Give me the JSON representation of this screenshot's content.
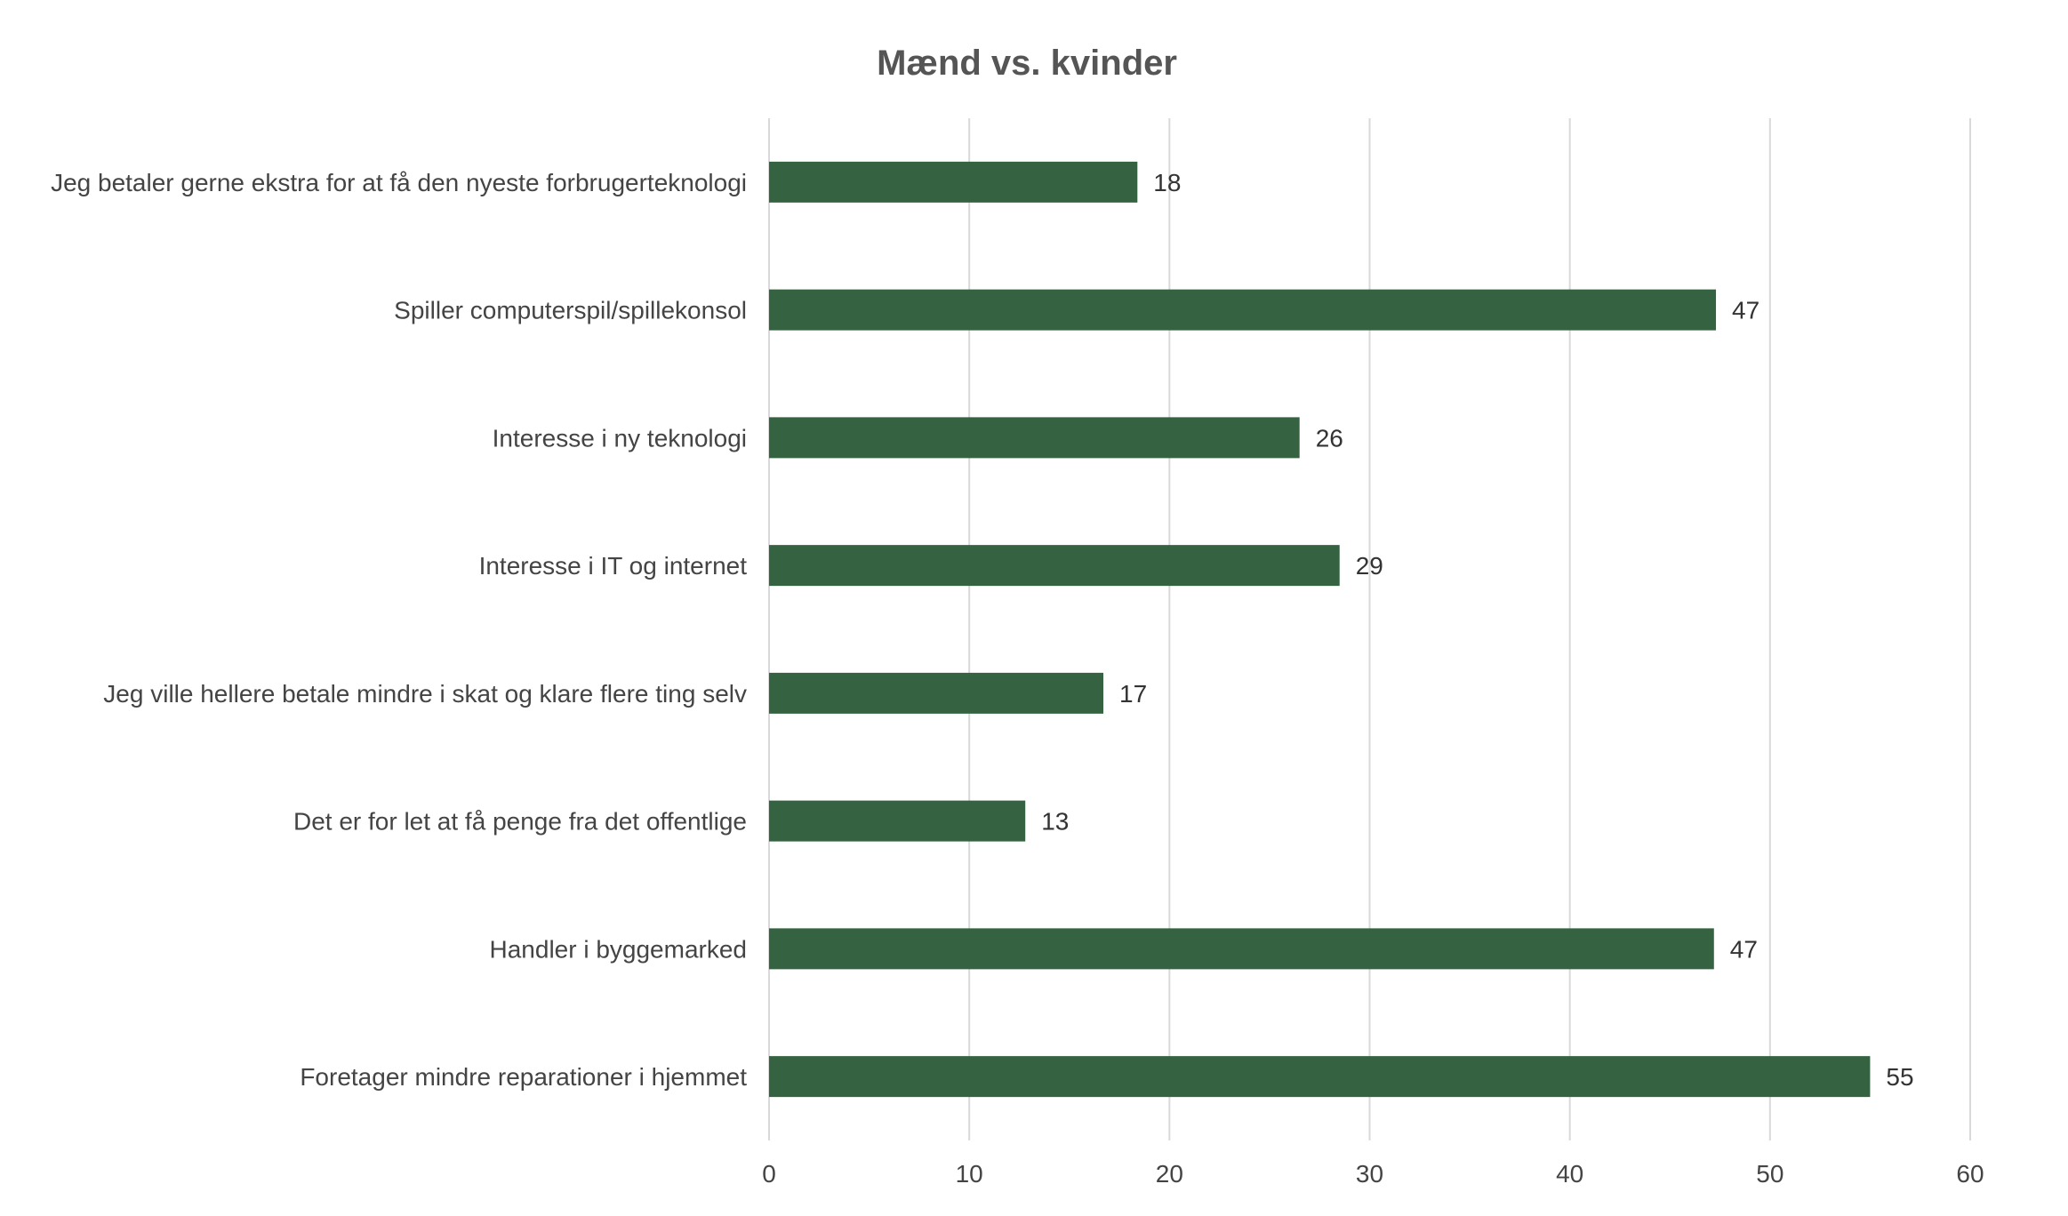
{
  "chart_data": {
    "type": "bar",
    "orientation": "horizontal",
    "title": "Mænd vs. kvinder",
    "categories": [
      "Jeg betaler gerne ekstra for at få den nyeste forbrugerteknologi",
      "Spiller computerspil/spillekonsol",
      "Interesse i ny teknologi",
      "Interesse i IT og internet",
      "Jeg ville hellere betale mindre i skat og klare flere ting selv",
      "Det er for let at få penge fra det offentlige",
      "Handler i byggemarked",
      "Foretager mindre reparationer i hjemmet"
    ],
    "values": [
      18.4,
      47.3,
      26.5,
      28.5,
      16.7,
      12.8,
      47.2,
      55.0
    ],
    "data_labels": [
      "18",
      "47",
      "26",
      "29",
      "17",
      "13",
      "47",
      "55"
    ],
    "xlim": [
      0,
      60
    ],
    "xticks": [
      "0",
      "10",
      "20",
      "30",
      "40",
      "50",
      "60"
    ],
    "grid": "vertical",
    "legend": "none",
    "bar_color": "#356342"
  }
}
